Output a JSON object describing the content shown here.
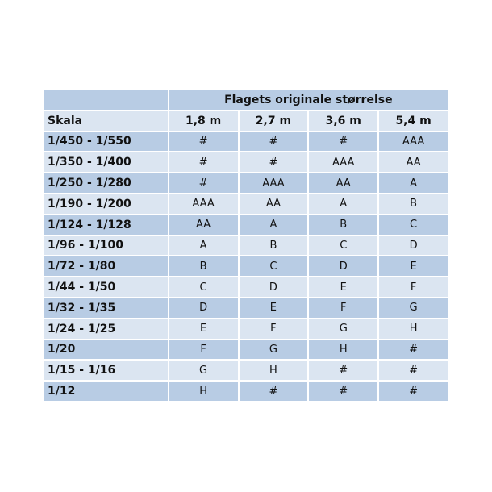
{
  "table": {
    "group_header": "Flagets originale størrelse",
    "row_header": "Skala",
    "columns": [
      "1,8 m",
      "2,7 m",
      "3,6 m",
      "5,4 m"
    ],
    "rows": [
      {
        "scale": "1/450 - 1/550",
        "values": [
          "#",
          "#",
          "#",
          "AAA"
        ]
      },
      {
        "scale": "1/350 - 1/400",
        "values": [
          "#",
          "#",
          "AAA",
          "AA"
        ]
      },
      {
        "scale": "1/250 - 1/280",
        "values": [
          "#",
          "AAA",
          "AA",
          "A"
        ]
      },
      {
        "scale": "1/190 - 1/200",
        "values": [
          "AAA",
          "AA",
          "A",
          "B"
        ]
      },
      {
        "scale": "1/124 - 1/128",
        "values": [
          "AA",
          "A",
          "B",
          "C"
        ]
      },
      {
        "scale": "1/96 - 1/100",
        "values": [
          "A",
          "B",
          "C",
          "D"
        ]
      },
      {
        "scale": "1/72 - 1/80",
        "values": [
          "B",
          "C",
          "D",
          "E"
        ]
      },
      {
        "scale": "1/44 - 1/50",
        "values": [
          "C",
          "D",
          "E",
          "F"
        ]
      },
      {
        "scale": "1/32 - 1/35",
        "values": [
          "D",
          "E",
          "F",
          "G"
        ]
      },
      {
        "scale": "1/24 - 1/25",
        "values": [
          "E",
          "F",
          "G",
          "H"
        ]
      },
      {
        "scale": "1/20",
        "values": [
          "F",
          "G",
          "H",
          "#"
        ]
      },
      {
        "scale": "1/15 - 1/16",
        "values": [
          "G",
          "H",
          "#",
          "#"
        ]
      },
      {
        "scale": "1/12",
        "values": [
          "H",
          "#",
          "#",
          "#"
        ]
      }
    ]
  },
  "colors": {
    "dark_row": "#b8cce4",
    "light_row": "#dbe5f1"
  }
}
